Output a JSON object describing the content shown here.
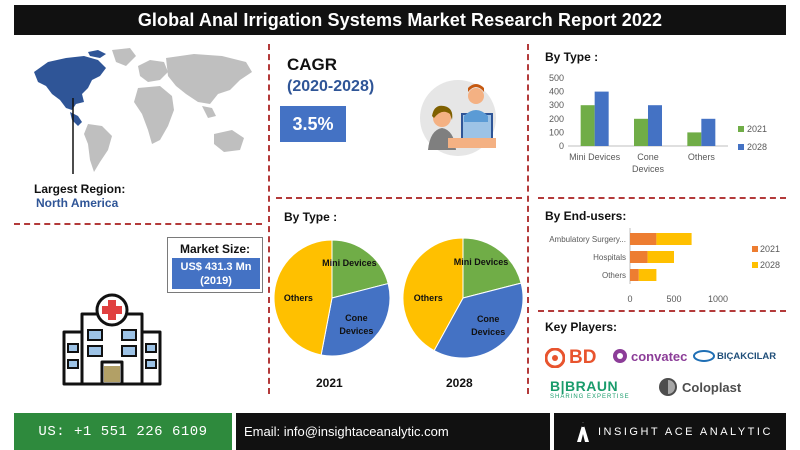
{
  "header": {
    "title": "Global Anal Irrigation Systems Market Research Report 2022"
  },
  "region": {
    "label": "Largest Region:",
    "value": "North America"
  },
  "cagr": {
    "title": "CAGR",
    "period": "(2020-2028)",
    "value": "3.5%"
  },
  "market_size": {
    "label": "Market Size:",
    "value_line1": "US$ 431.3 Mn",
    "value_line2": "(2019)"
  },
  "sections": {
    "pie_title": "By Type :",
    "bar_title": "By Type :",
    "enduser_title": "By End-users:",
    "players_title": "Key Players:"
  },
  "players": [
    "BD",
    "convatec",
    "BIÇAKCILAR",
    "B|BRAUN",
    "Coloplast"
  ],
  "players_taglines": {
    "bbraun": "SHARING EXPERTISE"
  },
  "footer": {
    "phone": "US: +1 551 226 6109",
    "email": "Email: info@insightaceanalytic.com",
    "brand": "INSIGHT ACE ANALYTIC"
  },
  "colors": {
    "blue": "#4472c4",
    "green": "#70ad47",
    "orange": "#ed7d31",
    "gold": "#ffc000",
    "dash_red": "#b33a3a",
    "map_gray": "#bfbfbf",
    "map_blue": "#2f5597"
  },
  "icons": [
    "world-map-icon",
    "doctor-icon",
    "hospital-icon",
    "insight-ace-logo-icon"
  ],
  "chart_data": [
    {
      "type": "pie",
      "title": "By Type :",
      "year_label": "2021",
      "categories": [
        "Mini Devices",
        "Cone Devices",
        "Others"
      ],
      "values": [
        21,
        32,
        47
      ]
    },
    {
      "type": "pie",
      "title": "By Type :",
      "year_label": "2028",
      "categories": [
        "Mini Devices",
        "Cone Devices",
        "Others"
      ],
      "values": [
        21,
        37,
        42
      ]
    },
    {
      "type": "bar",
      "title": "By Type :",
      "categories": [
        "Mini Devices",
        "Cone Devices",
        "Others"
      ],
      "series": [
        {
          "name": "2021",
          "values": [
            300,
            200,
            100
          ]
        },
        {
          "name": "2028",
          "values": [
            400,
            300,
            200
          ]
        }
      ],
      "ylim": [
        0,
        500
      ],
      "yticks": [
        0,
        100,
        200,
        300,
        400,
        500
      ],
      "legend": "right",
      "grid": false
    },
    {
      "type": "bar",
      "orientation": "horizontal",
      "stacked": true,
      "title": "By End-users:",
      "categories": [
        "Ambulatory Surgery...",
        "Hospitals",
        "Others"
      ],
      "series": [
        {
          "name": "2021",
          "values": [
            300,
            200,
            100
          ]
        },
        {
          "name": "2028",
          "values": [
            400,
            300,
            200
          ]
        }
      ],
      "xlim": [
        0,
        1000
      ],
      "xticks": [
        0,
        500,
        1000
      ],
      "legend": "right",
      "grid": false
    }
  ]
}
